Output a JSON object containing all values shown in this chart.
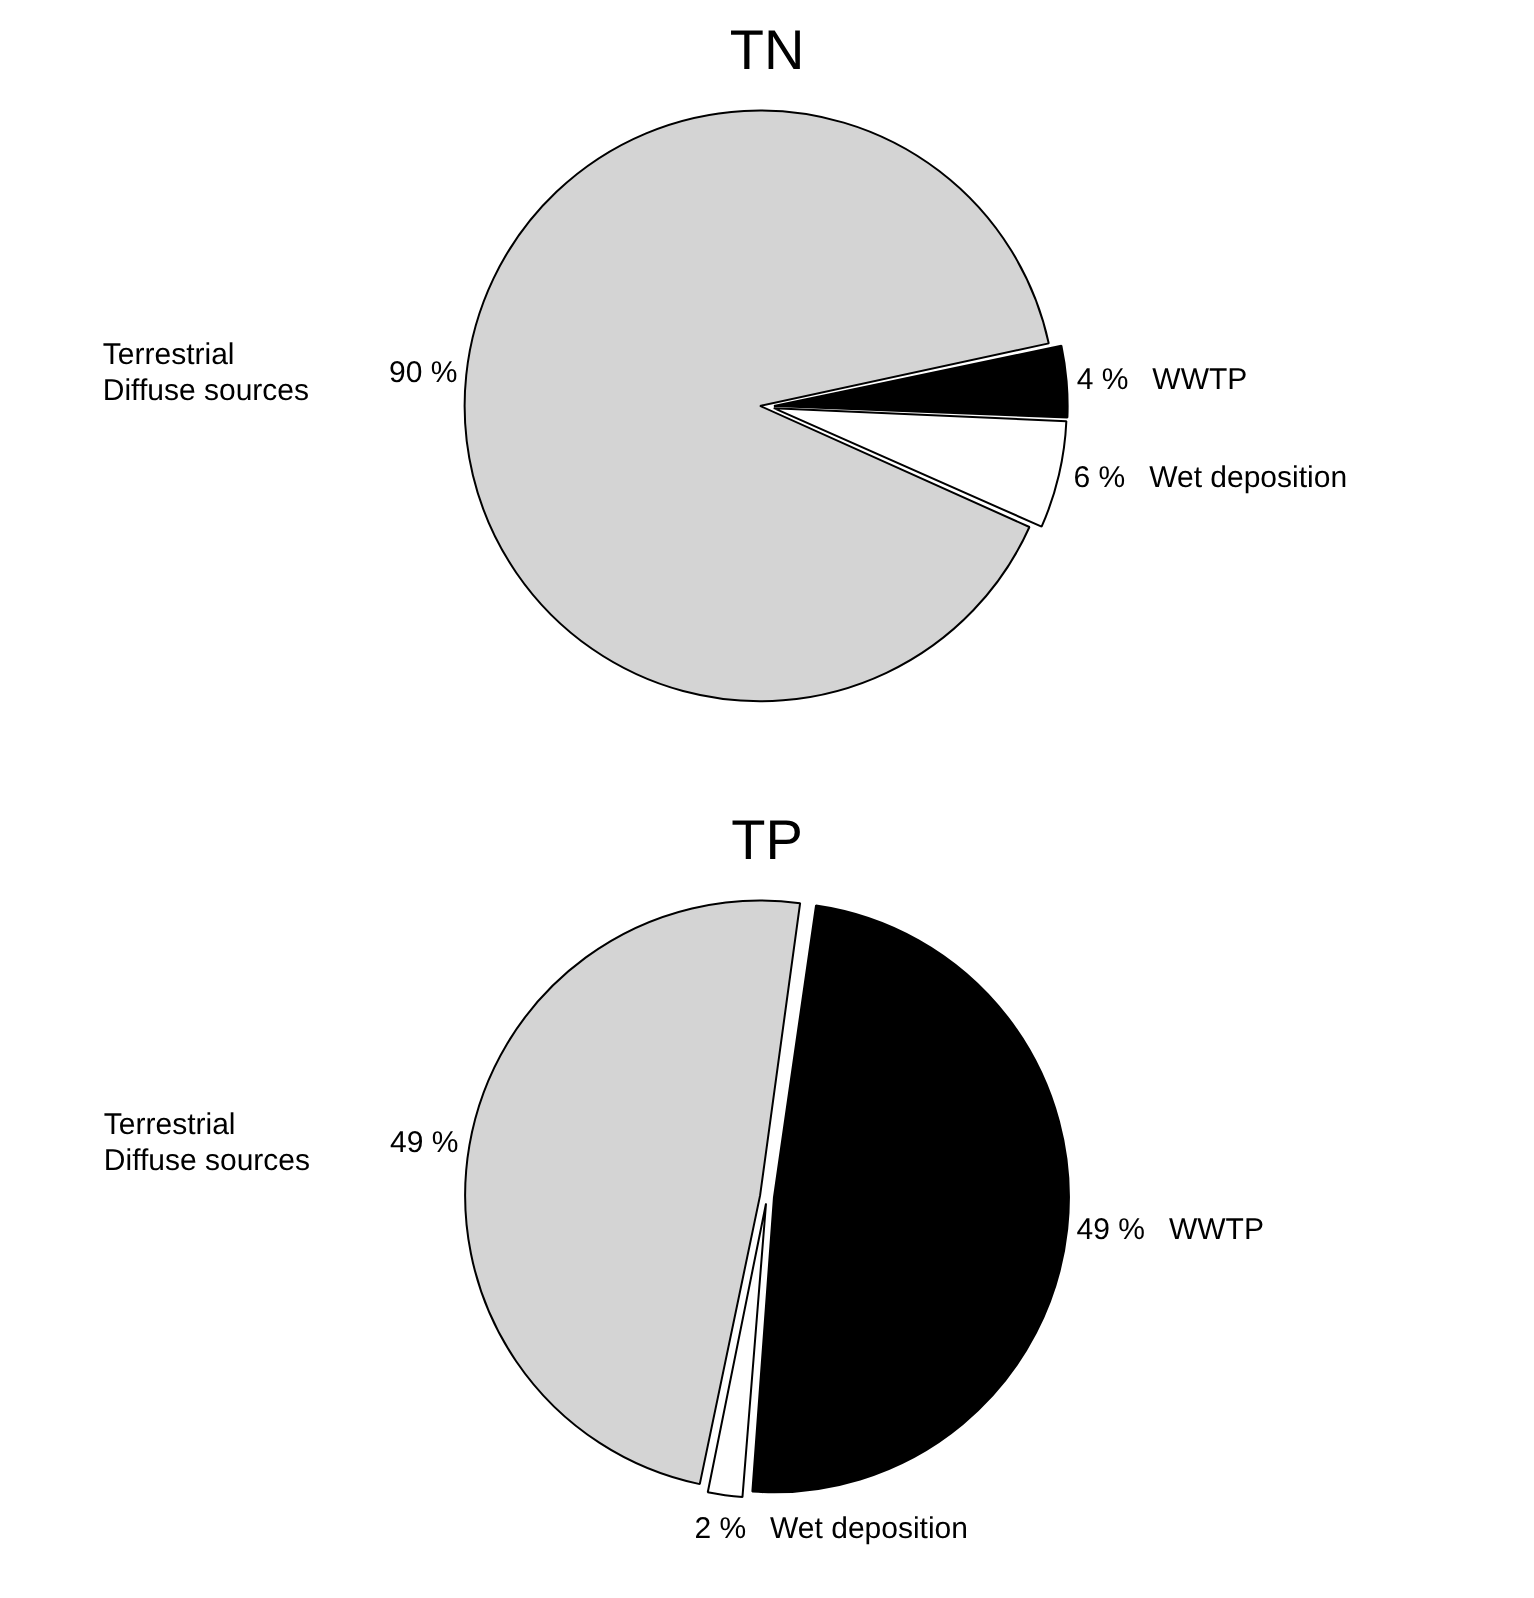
{
  "chart_data": [
    {
      "type": "pie",
      "title": "TN",
      "categories": [
        "WWTP",
        "Wet deposition",
        "Terrestrial Diffuse sources"
      ],
      "values": [
        4,
        6,
        90
      ],
      "value_labels": [
        "4 %",
        "6 %",
        "90 %"
      ],
      "colors": [
        "#000000",
        "#ffffff",
        "#d4d4d4"
      ],
      "legend": false
    },
    {
      "type": "pie",
      "title": "TP",
      "categories": [
        "WWTP",
        "Wet deposition",
        "Terrestrial Diffuse sources"
      ],
      "values": [
        49,
        2,
        49
      ],
      "value_labels": [
        "49 %",
        "2 %",
        "49 %"
      ],
      "colors": [
        "#000000",
        "#ffffff",
        "#d4d4d4"
      ],
      "legend": false
    }
  ]
}
